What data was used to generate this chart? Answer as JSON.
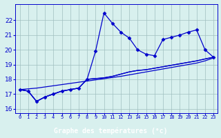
{
  "xlabel": "Graphe des températures (°c)",
  "x": [
    0,
    1,
    2,
    3,
    4,
    5,
    6,
    7,
    8,
    9,
    10,
    11,
    12,
    13,
    14,
    15,
    16,
    17,
    18,
    19,
    20,
    21,
    22,
    23
  ],
  "y_main": [
    17.3,
    17.2,
    16.5,
    16.8,
    17.0,
    17.2,
    17.3,
    17.4,
    18.0,
    19.9,
    22.5,
    21.8,
    21.2,
    20.8,
    20.0,
    19.7,
    19.6,
    20.7,
    20.85,
    21.0,
    21.2,
    21.35,
    20.0,
    19.5
  ],
  "y_trend1": [
    17.3,
    17.2,
    16.5,
    16.8,
    17.0,
    17.2,
    17.3,
    17.4,
    18.0,
    18.05,
    18.1,
    18.2,
    18.35,
    18.5,
    18.6,
    18.65,
    18.75,
    18.85,
    18.95,
    19.05,
    19.15,
    19.25,
    19.38,
    19.5
  ],
  "y_trend2": [
    17.3,
    17.2,
    16.5,
    16.8,
    17.0,
    17.2,
    17.3,
    17.4,
    18.0,
    18.05,
    18.1,
    18.2,
    18.35,
    18.5,
    18.6,
    18.65,
    18.75,
    18.85,
    18.95,
    19.05,
    19.15,
    19.25,
    19.38,
    19.5
  ],
  "y_linear": [
    17.3,
    17.35,
    17.4,
    17.48,
    17.56,
    17.64,
    17.72,
    17.8,
    17.88,
    17.96,
    18.04,
    18.12,
    18.2,
    18.3,
    18.4,
    18.5,
    18.6,
    18.7,
    18.8,
    18.9,
    19.0,
    19.1,
    19.25,
    19.45
  ],
  "bg_color": "#d8f0ee",
  "line_color": "#0000cc",
  "grid_color": "#9fbfbf",
  "xlabel_bg": "#2222aa",
  "xlabel_fg": "#ffffff",
  "ylim": [
    15.7,
    23.1
  ],
  "yticks": [
    16,
    17,
    18,
    19,
    20,
    21,
    22
  ],
  "xlim": [
    -0.5,
    23.5
  ],
  "marker": "D",
  "markersize": 2.5,
  "linewidth": 0.9
}
